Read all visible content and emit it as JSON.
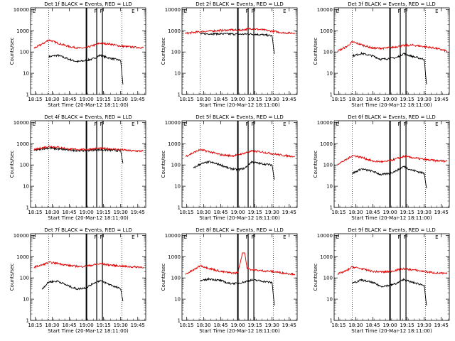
{
  "shared": {
    "x_tick_labels": [
      "18:15",
      "18:30",
      "18:45",
      "19:00",
      "19:15",
      "19:30",
      "19:45"
    ],
    "x_tick_minutes": [
      15,
      30,
      45,
      60,
      75,
      90,
      105
    ],
    "y_tick_labels": [
      "1",
      "10",
      "100",
      "1000",
      "10000"
    ],
    "y_tick_values": [
      1,
      10,
      100,
      1000,
      10000
    ],
    "xlabel": "Start Time (20-Mar-12 18:11:00)",
    "ylabel": "Counts/sec",
    "xlim_minutes": [
      11,
      112
    ],
    "ylim": [
      1,
      12000
    ],
    "y_scale": "log",
    "dotted_marker_minutes": [
      27,
      91
    ],
    "event_marker_minutes": [
      60,
      69,
      74
    ],
    "event_flag_labels": [
      "E",
      "F",
      "F",
      "E"
    ],
    "event_flag_minutes": [
      14,
      68,
      73,
      101
    ]
  },
  "colors": {
    "events": "#000000",
    "lld": "#e00000"
  },
  "chart_data": [
    {
      "type": "line",
      "title": "Det 1f BLACK = Events, RED = LLD",
      "series": [
        {
          "name": "Events",
          "color": "black",
          "x_minutes": [
            27,
            35,
            45,
            52,
            60,
            66,
            72,
            78,
            90,
            92
          ],
          "values": [
            60,
            70,
            45,
            35,
            40,
            48,
            70,
            55,
            40,
            3
          ]
        },
        {
          "name": "LLD",
          "color": "red",
          "x_minutes": [
            14,
            22,
            27,
            35,
            45,
            55,
            60,
            72,
            80,
            90,
            100,
            110
          ],
          "values": [
            150,
            250,
            370,
            260,
            180,
            150,
            160,
            260,
            240,
            190,
            170,
            160
          ]
        }
      ]
    },
    {
      "type": "line",
      "title": "Det 2f BLACK = Events, RED = LLD",
      "series": [
        {
          "name": "Events",
          "color": "black",
          "x_minutes": [
            27,
            35,
            45,
            55,
            60,
            70,
            80,
            90,
            92
          ],
          "values": [
            700,
            720,
            720,
            700,
            680,
            700,
            660,
            580,
            80
          ]
        },
        {
          "name": "LLD",
          "color": "red",
          "x_minutes": [
            14,
            27,
            40,
            55,
            60,
            72,
            85,
            100,
            110
          ],
          "values": [
            750,
            900,
            1000,
            1100,
            1050,
            1250,
            1050,
            800,
            780
          ]
        }
      ]
    },
    {
      "type": "line",
      "title": "Det 3f BLACK = Events, RED = LLD",
      "series": [
        {
          "name": "Events",
          "color": "black",
          "x_minutes": [
            27,
            35,
            45,
            52,
            60,
            66,
            72,
            78,
            90,
            92
          ],
          "values": [
            65,
            85,
            65,
            45,
            50,
            55,
            85,
            65,
            45,
            3
          ]
        },
        {
          "name": "LLD",
          "color": "red",
          "x_minutes": [
            14,
            22,
            27,
            35,
            45,
            55,
            60,
            72,
            80,
            90,
            100,
            110
          ],
          "values": [
            110,
            180,
            300,
            220,
            150,
            150,
            160,
            200,
            210,
            180,
            150,
            110
          ]
        }
      ]
    },
    {
      "type": "line",
      "title": "Det 4f BLACK = Events, RED = LLD",
      "series": [
        {
          "name": "Events",
          "color": "black",
          "x_minutes": [
            14,
            22,
            27,
            35,
            45,
            55,
            60,
            70,
            80,
            90,
            92
          ],
          "values": [
            480,
            580,
            640,
            560,
            500,
            470,
            480,
            520,
            500,
            460,
            120
          ]
        },
        {
          "name": "LLD",
          "color": "red",
          "x_minutes": [
            14,
            22,
            27,
            35,
            45,
            55,
            60,
            70,
            80,
            90,
            100,
            110
          ],
          "values": [
            520,
            650,
            750,
            680,
            560,
            530,
            540,
            600,
            580,
            520,
            460,
            450
          ]
        }
      ]
    },
    {
      "type": "line",
      "title": "Det 5f BLACK = Events, RED = LLD",
      "series": [
        {
          "name": "Events",
          "color": "black",
          "x_minutes": [
            21,
            27,
            35,
            45,
            52,
            60,
            66,
            72,
            78,
            90,
            92
          ],
          "values": [
            70,
            110,
            140,
            100,
            70,
            60,
            70,
            140,
            120,
            100,
            20
          ]
        },
        {
          "name": "LLD",
          "color": "red",
          "x_minutes": [
            14,
            22,
            27,
            35,
            45,
            55,
            60,
            72,
            80,
            90,
            100,
            110
          ],
          "values": [
            250,
            400,
            520,
            420,
            300,
            270,
            300,
            440,
            420,
            340,
            280,
            250
          ]
        }
      ]
    },
    {
      "type": "line",
      "title": "Det 6f BLACK = Events, RED = LLD",
      "series": [
        {
          "name": "Events",
          "color": "black",
          "x_minutes": [
            27,
            35,
            45,
            52,
            60,
            66,
            72,
            78,
            90,
            92
          ],
          "values": [
            40,
            65,
            50,
            35,
            40,
            55,
            85,
            60,
            40,
            8
          ]
        },
        {
          "name": "LLD",
          "color": "red",
          "x_minutes": [
            14,
            22,
            27,
            35,
            45,
            55,
            60,
            72,
            80,
            90,
            100,
            110
          ],
          "values": [
            110,
            180,
            280,
            230,
            150,
            140,
            160,
            250,
            220,
            180,
            160,
            150
          ]
        }
      ]
    },
    {
      "type": "line",
      "title": "Det 7f BLACK = Events, RED = LLD",
      "series": [
        {
          "name": "Events",
          "color": "black",
          "x_minutes": [
            21,
            27,
            35,
            45,
            52,
            60,
            66,
            72,
            78,
            90,
            92
          ],
          "values": [
            30,
            65,
            70,
            40,
            30,
            35,
            55,
            75,
            55,
            30,
            8
          ]
        },
        {
          "name": "LLD",
          "color": "red",
          "x_minutes": [
            14,
            22,
            27,
            35,
            45,
            55,
            60,
            72,
            80,
            90,
            100,
            110
          ],
          "values": [
            320,
            420,
            540,
            480,
            380,
            340,
            360,
            460,
            410,
            360,
            330,
            320
          ]
        }
      ]
    },
    {
      "type": "line",
      "title": "Det 8f BLACK = Events, RED = LLD",
      "series": [
        {
          "name": "Events",
          "color": "black",
          "x_minutes": [
            27,
            35,
            45,
            52,
            60,
            66,
            72,
            78,
            90,
            92
          ],
          "values": [
            70,
            90,
            75,
            55,
            55,
            65,
            80,
            75,
            60,
            5
          ]
        },
        {
          "name": "LLD",
          "color": "red",
          "x_minutes": [
            14,
            22,
            27,
            35,
            45,
            55,
            60,
            64,
            66,
            68,
            72,
            80,
            90,
            100,
            110
          ],
          "values": [
            150,
            250,
            380,
            280,
            200,
            170,
            170,
            1500,
            1500,
            300,
            240,
            220,
            200,
            170,
            150
          ]
        }
      ]
    },
    {
      "type": "line",
      "title": "Det 9f BLACK = Events, RED = LLD",
      "series": [
        {
          "name": "Events",
          "color": "black",
          "x_minutes": [
            27,
            35,
            45,
            52,
            60,
            66,
            72,
            78,
            90,
            92
          ],
          "values": [
            55,
            80,
            60,
            40,
            45,
            55,
            85,
            65,
            45,
            5
          ]
        },
        {
          "name": "LLD",
          "color": "red",
          "x_minutes": [
            14,
            22,
            27,
            35,
            45,
            55,
            60,
            72,
            80,
            90,
            100,
            110
          ],
          "values": [
            150,
            220,
            330,
            270,
            200,
            190,
            200,
            270,
            240,
            200,
            170,
            160
          ]
        }
      ]
    }
  ]
}
